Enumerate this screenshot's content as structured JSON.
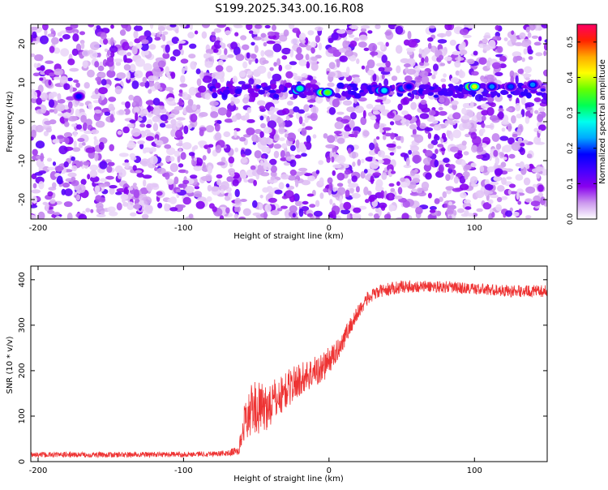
{
  "figure": {
    "title": "S199.2025.343.00.16.R08"
  },
  "chart_data": [
    {
      "type": "heatmap",
      "xlabel": "Height of straight line (km)",
      "ylabel": "Frequency (Hz)",
      "xlim": [
        -205,
        150
      ],
      "ylim": [
        -25,
        25
      ],
      "xticks": [
        -200,
        -100,
        0,
        100
      ],
      "yticks": [
        -20,
        -10,
        0,
        10,
        20
      ],
      "colorbar": {
        "label": "Normalized spectral amplitude",
        "range": [
          0,
          0.55
        ],
        "ticks": [
          "0.0",
          "0.1",
          "0.2",
          "0.3",
          "0.4",
          "0.5"
        ],
        "colors": [
          "#ffffff",
          "#cc99ee",
          "#8800ee",
          "#4400ff",
          "#0000ff",
          "#00aaff",
          "#00ffee",
          "#00ff55",
          "#66ff00",
          "#ffff00",
          "#ffaa00",
          "#ff2200",
          "#ff0066"
        ]
      },
      "background_level": 0.07,
      "signal_band_hz": 8,
      "gap_km": [
        [
          -5,
          -1
        ],
        [
          -148,
          -145
        ],
        [
          -62,
          -60
        ],
        [
          20,
          23
        ],
        [
          45,
          47
        ]
      ],
      "hotspots": [
        {
          "x": -22,
          "y": 8,
          "value": 0.33
        },
        {
          "x": -20,
          "y": 8.5,
          "value": 0.3
        },
        {
          "x": -5,
          "y": 7.5,
          "value": 0.4
        },
        {
          "x": -1,
          "y": 7.5,
          "value": 0.36
        },
        {
          "x": 35,
          "y": 8,
          "value": 0.28
        },
        {
          "x": 38,
          "y": 8,
          "value": 0.26
        },
        {
          "x": 50,
          "y": 8.5,
          "value": 0.2
        },
        {
          "x": 55,
          "y": 9,
          "value": 0.18
        },
        {
          "x": 97,
          "y": 9,
          "value": 0.45
        },
        {
          "x": 100,
          "y": 9,
          "value": 0.4
        },
        {
          "x": 112,
          "y": 9,
          "value": 0.22
        },
        {
          "x": 125,
          "y": 9,
          "value": 0.2
        },
        {
          "x": 140,
          "y": 9.5,
          "value": 0.22
        },
        {
          "x": -172,
          "y": 6.5,
          "value": 0.18
        }
      ]
    },
    {
      "type": "line",
      "xlabel": "Height of straight line (km)",
      "ylabel": "SNR (10 * v/v)",
      "xlim": [
        -205,
        150
      ],
      "ylim": [
        0,
        430
      ],
      "xticks": [
        -200,
        -100,
        0,
        100
      ],
      "yticks": [
        0,
        100,
        200,
        300,
        400
      ],
      "color": "#ee3333",
      "series": [
        {
          "x": [
            -205,
            -150,
            -100,
            -70,
            -62,
            -58,
            -52,
            -45,
            -35,
            -25,
            -15,
            -5,
            5,
            15,
            25,
            35,
            50,
            75,
            100,
            125,
            150
          ],
          "y": [
            15,
            15,
            16,
            18,
            25,
            90,
            120,
            115,
            140,
            170,
            190,
            205,
            240,
            300,
            355,
            375,
            385,
            385,
            380,
            375,
            375
          ],
          "noise": [
            6,
            6,
            6,
            6,
            12,
            40,
            60,
            55,
            45,
            40,
            35,
            35,
            25,
            20,
            16,
            14,
            14,
            13,
            13,
            13,
            13
          ]
        }
      ]
    }
  ]
}
